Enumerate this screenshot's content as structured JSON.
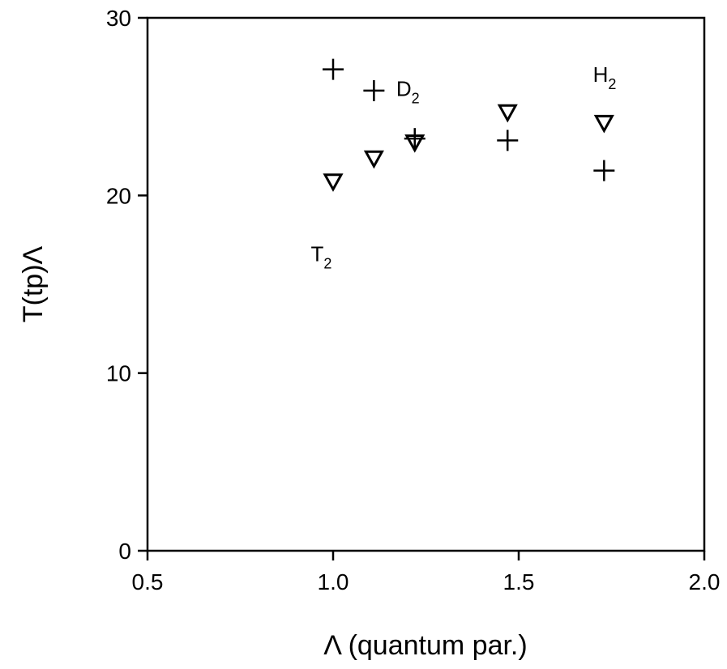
{
  "chart_data": {
    "type": "scatter",
    "title": "",
    "xlabel": "Λ (quantum par.)",
    "ylabel": "T(tp)Λ",
    "xlim": [
      0.5,
      2.0
    ],
    "ylim": [
      0,
      30
    ],
    "xticks": [
      0.5,
      1.0,
      1.5,
      2.0
    ],
    "xtick_labels": [
      "0.5",
      "1.0",
      "1.5",
      "2.0"
    ],
    "yticks": [
      0,
      10,
      20,
      30
    ],
    "ytick_labels": [
      "0",
      "10",
      "20",
      "30"
    ],
    "grid": false,
    "series": [
      {
        "marker": "plus",
        "x": [
          1.0,
          1.11,
          1.22,
          1.47,
          1.73
        ],
        "y": [
          27.1,
          25.9,
          23.2,
          23.1,
          21.4
        ]
      },
      {
        "marker": "triangle-down",
        "x": [
          1.0,
          1.11,
          1.22,
          1.47,
          1.73
        ],
        "y": [
          20.8,
          22.1,
          23.0,
          24.7,
          24.1
        ]
      }
    ],
    "annotations": [
      {
        "base": "D",
        "sub": "2",
        "x": 1.17,
        "y": 25.6
      },
      {
        "base": "H",
        "sub": "2",
        "x": 1.7,
        "y": 26.4
      },
      {
        "base": "T",
        "sub": "2",
        "x": 0.94,
        "y": 16.3
      }
    ]
  }
}
